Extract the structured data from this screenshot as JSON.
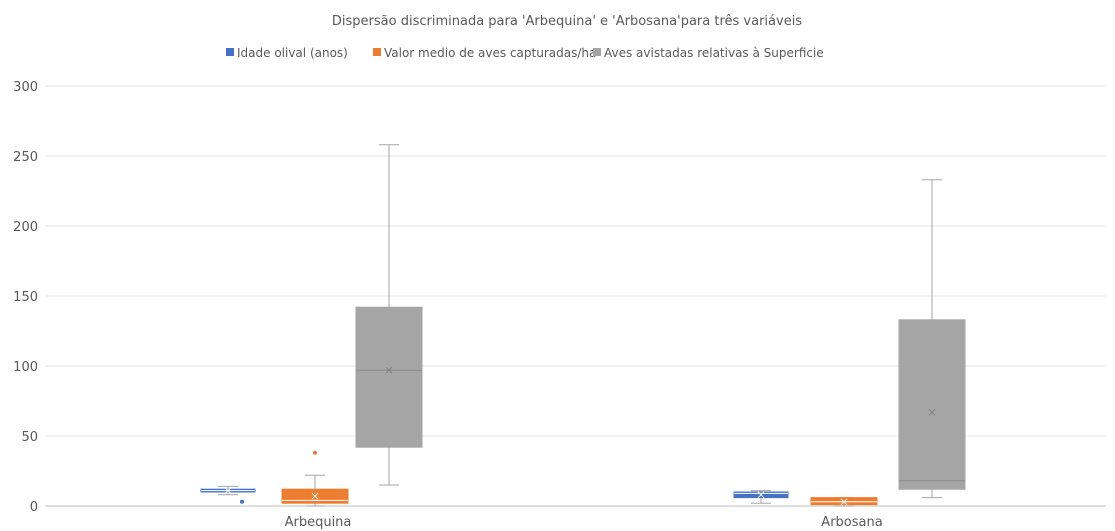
{
  "chart_data": {
    "type": "boxplot",
    "title": "Dispersão  discriminada para 'Arbequina' e 'Arbosana'para três variáveis",
    "categories": [
      "Arbequina",
      "Arbosana"
    ],
    "ylim": [
      0,
      300
    ],
    "yticks": [
      "0",
      "50",
      "100",
      "150",
      "200",
      "250",
      "300"
    ],
    "grid": true,
    "legend_position": "top",
    "series": [
      {
        "name": "Idade olival (anos)",
        "color": "#4472C4",
        "boxes": [
          {
            "min": 8,
            "q1": 10,
            "median": 11,
            "q3": 12,
            "max": 14,
            "mean": 11,
            "outliers": [
              3
            ]
          },
          {
            "min": 2,
            "q1": 6,
            "median": 9,
            "q3": 10,
            "max": 11,
            "mean": 8,
            "outliers": []
          }
        ]
      },
      {
        "name": "Valor medio de aves capturadas/ha",
        "color": "#ED7D31",
        "boxes": [
          {
            "min": 0,
            "q1": 2,
            "median": 4,
            "q3": 12,
            "max": 22,
            "mean": 7,
            "outliers": [
              38
            ]
          },
          {
            "min": 0,
            "q1": 1,
            "median": 3,
            "q3": 6,
            "max": 6,
            "mean": 3,
            "outliers": []
          }
        ]
      },
      {
        "name": "Aves avistadas relativas à Superficie",
        "color": "#A5A5A5",
        "boxes": [
          {
            "min": 15,
            "q1": 42,
            "median": 97,
            "q3": 142,
            "max": 258,
            "mean": 97,
            "outliers": []
          },
          {
            "min": 6,
            "q1": 12,
            "median": 18,
            "q3": 133,
            "max": 233,
            "mean": 67,
            "outliers": []
          }
        ]
      }
    ]
  }
}
